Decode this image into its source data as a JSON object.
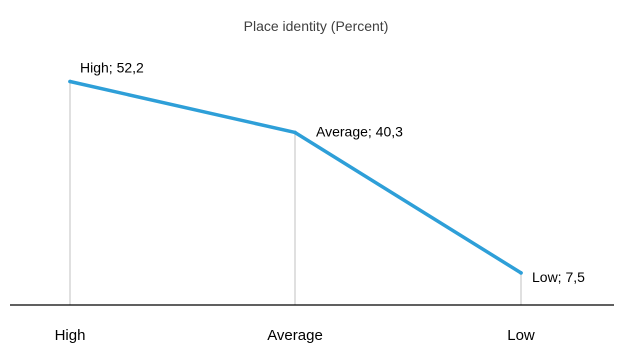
{
  "chart_data": {
    "type": "line",
    "title": "Place identity (Percent)",
    "categories": [
      "High",
      "Average",
      "Low"
    ],
    "series": [
      {
        "values": [
          52.2,
          40.3,
          7.5
        ]
      }
    ],
    "data_labels": [
      "High; 52,2",
      "Average; 40,3",
      "Low; 7,5"
    ],
    "xlabel": "",
    "ylabel": "",
    "ylim": [
      0,
      60
    ],
    "grid": false,
    "drop_lines": true,
    "legend": "none",
    "colors": {
      "line": "#2e9fd8",
      "drop_line": "#c0c0c0",
      "axis": "#000000",
      "title": "#404040"
    }
  }
}
